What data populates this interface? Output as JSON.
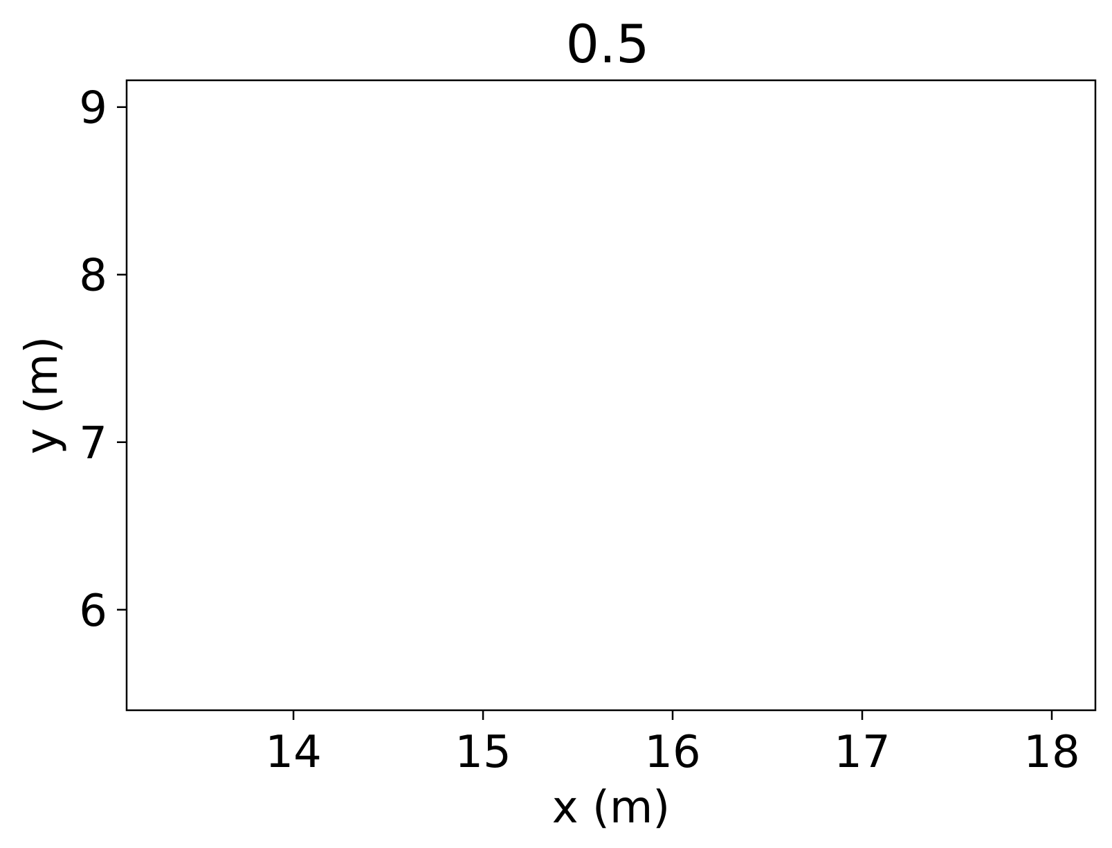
{
  "chart_data": {
    "type": "scatter",
    "title": "0.5",
    "xlabel": "x (m)",
    "ylabel": "y (m)",
    "xlim": [
      13.12,
      18.23
    ],
    "ylim": [
      5.4,
      9.16
    ],
    "x_ticks": [
      14,
      15,
      16,
      17,
      18
    ],
    "y_ticks": [
      6,
      7,
      8,
      9
    ],
    "grid": false,
    "series": []
  }
}
